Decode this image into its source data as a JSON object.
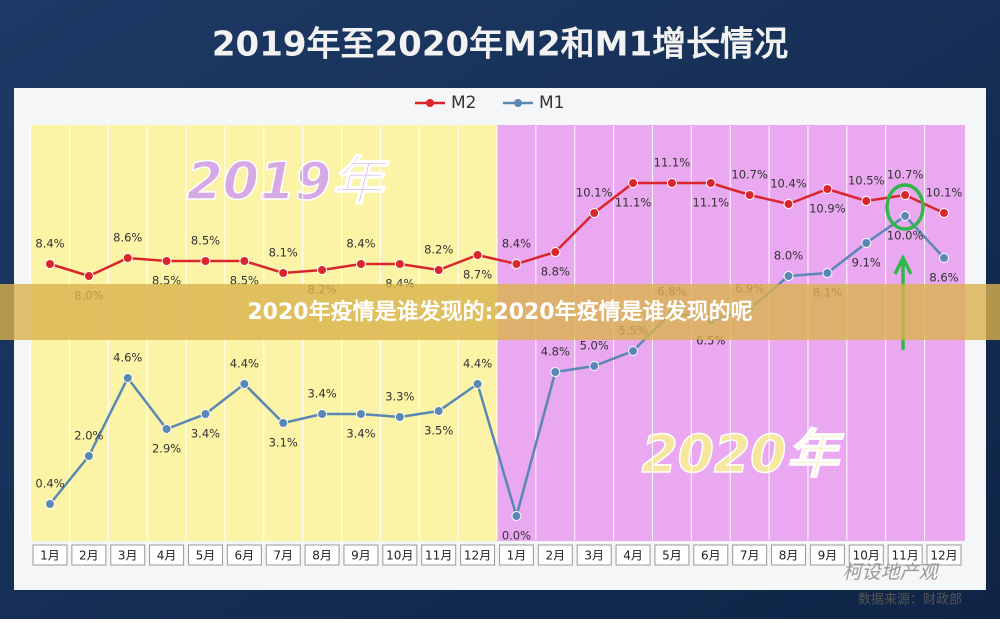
{
  "chart_data": {
    "type": "line",
    "title": "2019年至2020年M2和M1增长情况",
    "annotations": [
      "2019年",
      "2020年"
    ],
    "banner": "2020年疫情是谁发现的:2020年疫情是谁发现的呢",
    "watermark": "柯设地产观",
    "source": "数据来源：财政部",
    "categories": [
      "1月",
      "2月",
      "3月",
      "4月",
      "5月",
      "6月",
      "7月",
      "8月",
      "9月",
      "10月",
      "11月",
      "12月",
      "1月",
      "2月",
      "3月",
      "4月",
      "5月",
      "6月",
      "7月",
      "8月",
      "9月",
      "10月",
      "11月",
      "12月"
    ],
    "ylim": [
      -0.8,
      13
    ],
    "series": [
      {
        "name": "M2",
        "color": "#d9262c",
        "values": [
          8.4,
          8.0,
          8.6,
          8.5,
          8.5,
          8.5,
          8.1,
          8.2,
          8.4,
          8.4,
          8.2,
          8.7,
          8.4,
          8.8,
          10.1,
          11.1,
          11.1,
          11.1,
          10.7,
          10.4,
          10.9,
          10.5,
          10.7,
          10.1
        ],
        "value_labels": [
          "8.4%",
          "8.0%",
          "8.6%",
          "8.5%",
          "8.5%",
          "8.5%",
          "8.1%",
          "8.2%",
          "8.4%",
          "8.4%",
          "8.2%",
          "8.7%",
          "8.4%",
          "8.8%",
          "10.1%",
          "11.1%",
          "11.1%",
          "11.1%",
          "10.7%",
          "10.4%",
          "10.9%",
          "10.5%",
          "10.7%",
          "10.1%"
        ]
      },
      {
        "name": "M1",
        "color": "#5b87b5",
        "values": [
          0.4,
          2.0,
          4.6,
          2.9,
          3.4,
          4.4,
          3.1,
          3.4,
          3.4,
          3.3,
          3.5,
          4.4,
          0.0,
          4.8,
          5.0,
          5.5,
          6.8,
          6.5,
          6.9,
          8.0,
          8.1,
          9.1,
          10.0,
          8.6
        ],
        "value_labels": [
          "0.4%",
          "2.0%",
          "4.6%",
          "2.9%",
          "3.4%",
          "4.4%",
          "3.1%",
          "3.4%",
          "3.4%",
          "3.3%",
          "3.5%",
          "4.4%",
          "0.0%",
          "4.8%",
          "5.0%",
          "5.5%",
          "6.8%",
          "6.5%",
          "6.9%",
          "8.0%",
          "8.1%",
          "9.1%",
          "10.0%",
          "8.6%"
        ]
      }
    ]
  }
}
